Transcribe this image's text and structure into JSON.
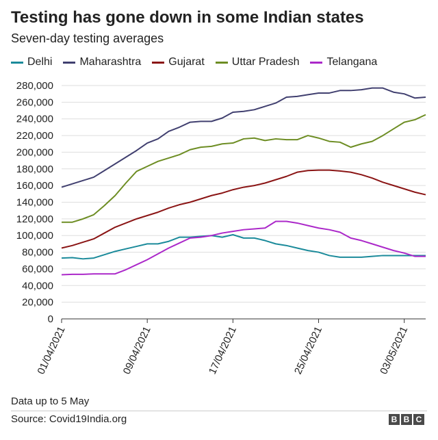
{
  "chart_data": {
    "type": "line",
    "title": "Testing has gone down in some Indian states",
    "subtitle": "Seven-day testing averages",
    "x": [
      "01/04/2021",
      "02/04/2021",
      "03/04/2021",
      "04/04/2021",
      "05/04/2021",
      "06/04/2021",
      "07/04/2021",
      "08/04/2021",
      "09/04/2021",
      "10/04/2021",
      "11/04/2021",
      "12/04/2021",
      "13/04/2021",
      "14/04/2021",
      "15/04/2021",
      "16/04/2021",
      "17/04/2021",
      "18/04/2021",
      "19/04/2021",
      "20/04/2021",
      "21/04/2021",
      "22/04/2021",
      "23/04/2021",
      "24/04/2021",
      "25/04/2021",
      "26/04/2021",
      "27/04/2021",
      "28/04/2021",
      "29/04/2021",
      "30/04/2021",
      "01/05/2021",
      "02/05/2021",
      "03/05/2021",
      "04/05/2021",
      "05/05/2021"
    ],
    "x_ticks": [
      "01/04/2021",
      "09/04/2021",
      "17/04/2021",
      "25/04/2021",
      "03/05/2021"
    ],
    "ylim": [
      0,
      280000
    ],
    "y_ticks": [
      "0",
      "20,000",
      "40,000",
      "60,000",
      "80,000",
      "100,000",
      "120,000",
      "140,000",
      "160,000",
      "180,000",
      "200,000",
      "220,000",
      "240,000",
      "260,000",
      "280,000"
    ],
    "grid": true,
    "legend": "top",
    "series": [
      {
        "name": "Delhi",
        "color": "#1a8a9a",
        "values": [
          73000,
          73500,
          72000,
          73000,
          77000,
          81000,
          84000,
          87000,
          90000,
          90000,
          93000,
          98000,
          98000,
          99000,
          100000,
          98000,
          101000,
          97000,
          97000,
          94000,
          90000,
          88000,
          85000,
          82000,
          80000,
          76000,
          74000,
          74000,
          74000,
          75000,
          76000,
          76000,
          76000,
          76000,
          76000
        ]
      },
      {
        "name": "Maharashtra",
        "color": "#403f6f",
        "values": [
          158000,
          162000,
          166000,
          170000,
          178000,
          186000,
          194000,
          202000,
          211000,
          216000,
          225000,
          230000,
          236000,
          237000,
          237000,
          241000,
          248000,
          249000,
          251000,
          255000,
          259000,
          266000,
          267000,
          269000,
          271000,
          271000,
          274000,
          274000,
          275000,
          277000,
          277000,
          272000,
          270000,
          265000,
          266000
        ]
      },
      {
        "name": "Gujarat",
        "color": "#8a1414",
        "values": [
          85000,
          88000,
          92000,
          96000,
          103000,
          110000,
          115000,
          120000,
          124000,
          128000,
          133000,
          137000,
          140000,
          144000,
          148000,
          151000,
          155000,
          158000,
          160000,
          163000,
          167000,
          171000,
          176000,
          178000,
          178500,
          178500,
          177500,
          176000,
          173000,
          169000,
          164000,
          160000,
          156000,
          152000,
          149000
        ]
      },
      {
        "name": "Uttar Pradesh",
        "color": "#6d8d23",
        "values": [
          116000,
          116000,
          120000,
          125000,
          136000,
          148000,
          163000,
          177000,
          183000,
          189000,
          193000,
          197000,
          203000,
          206000,
          207000,
          210000,
          211000,
          216000,
          217000,
          214000,
          216000,
          215000,
          215000,
          220000,
          217000,
          213000,
          212000,
          206000,
          210000,
          213000,
          220000,
          228000,
          236000,
          239000,
          245000
        ]
      },
      {
        "name": "Telangana",
        "color": "#ab28c9",
        "values": [
          53000,
          53500,
          53500,
          54000,
          54000,
          54000,
          59000,
          65000,
          71000,
          78000,
          85000,
          91000,
          97000,
          98000,
          100000,
          103000,
          105000,
          107000,
          108000,
          109000,
          117000,
          117000,
          115000,
          112000,
          109000,
          107000,
          104000,
          97000,
          94000,
          90000,
          86000,
          82000,
          79000,
          75000,
          75000
        ]
      }
    ]
  },
  "footer": {
    "note": "Data up to 5 May",
    "source": "Source: Covid19India.org",
    "logo_letters": [
      "B",
      "B",
      "C"
    ]
  }
}
